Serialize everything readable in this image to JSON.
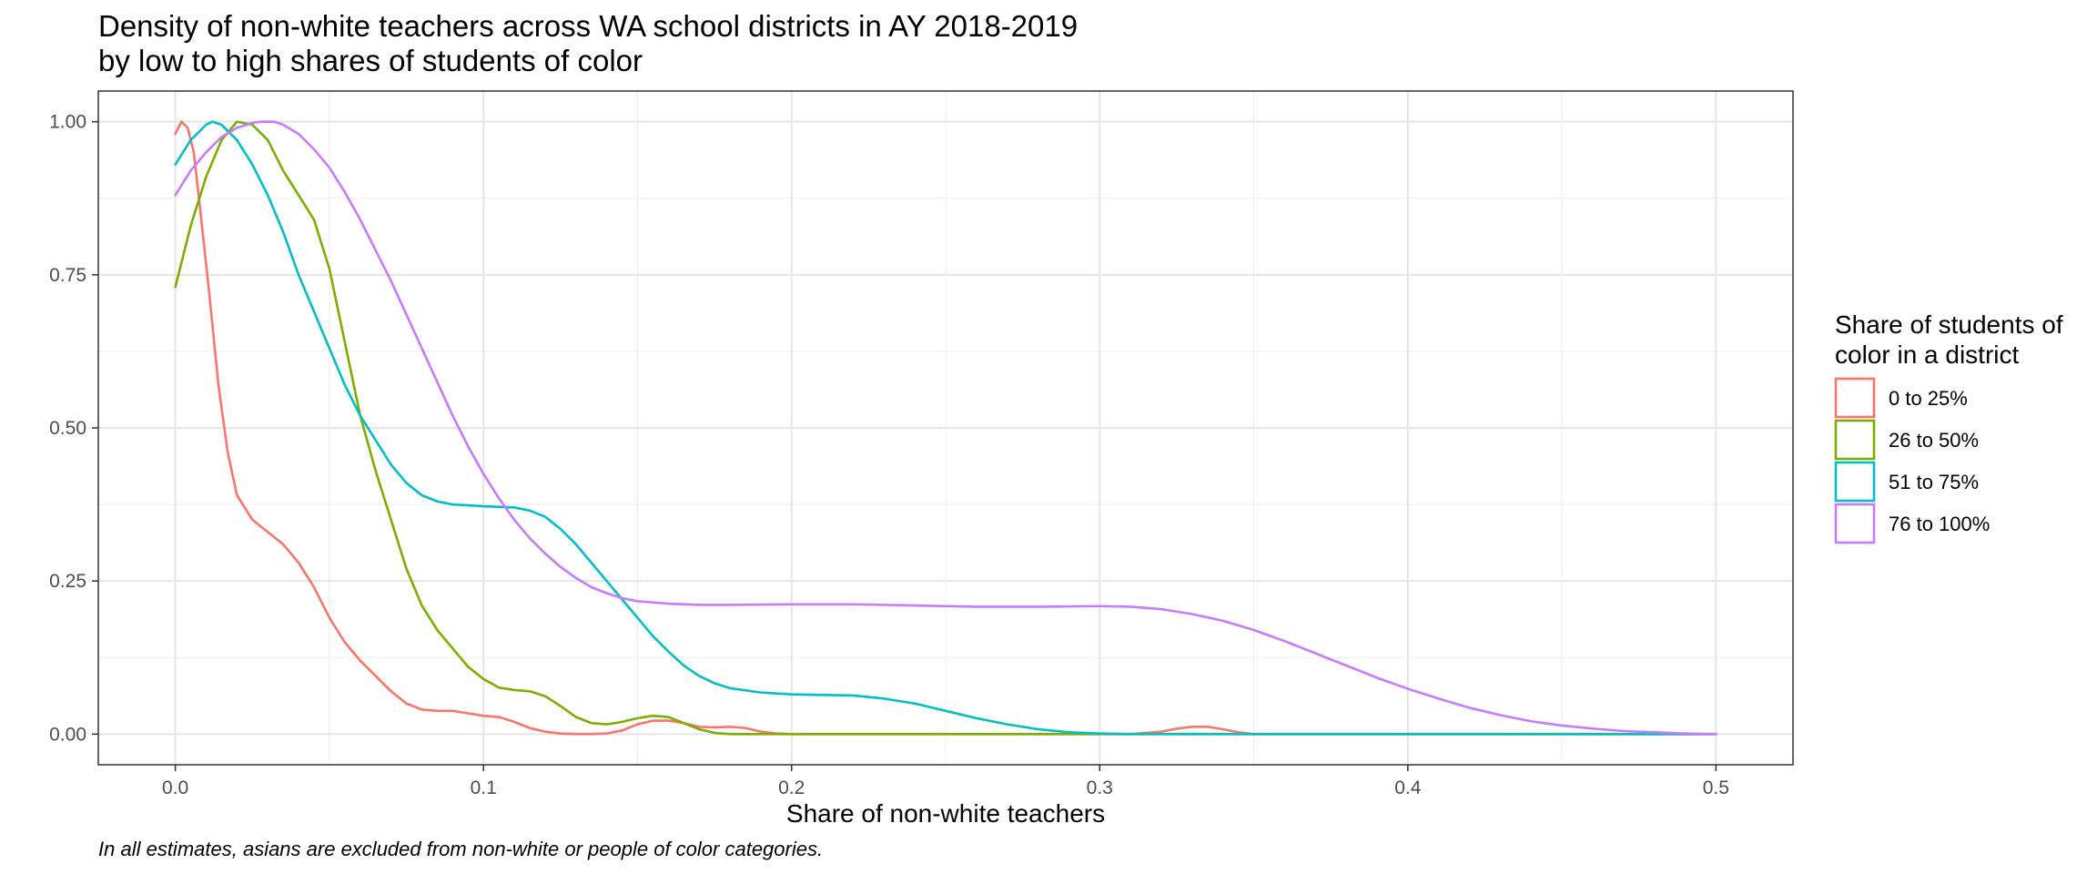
{
  "chart_data": {
    "type": "line",
    "title": "Density of non-white teachers across WA school districts in AY 2018-2019",
    "subtitle": "by low to high shares of students of color",
    "xlabel": "Share of non-white teachers",
    "ylabel": "",
    "caption": "In all estimates, asians are excluded from non-white or people of color categories.",
    "xlim": [
      -0.025,
      0.525
    ],
    "ylim": [
      -0.05,
      1.05
    ],
    "x_ticks": [
      0.0,
      0.1,
      0.2,
      0.3,
      0.4,
      0.5
    ],
    "x_tick_labels": [
      "0.0",
      "0.1",
      "0.2",
      "0.3",
      "0.4",
      "0.5"
    ],
    "y_ticks": [
      0.0,
      0.25,
      0.5,
      0.75,
      1.0
    ],
    "y_tick_labels": [
      "0.00",
      "0.25",
      "0.50",
      "0.75",
      "1.00"
    ],
    "grid": true,
    "legend": {
      "title": "Share of students of color in a district",
      "title_lines": [
        "Share of students of",
        "color in a district"
      ],
      "position": "right"
    },
    "series": [
      {
        "name": "0 to 25%",
        "color": "#F8766D",
        "points": [
          [
            0.0,
            0.98
          ],
          [
            0.002,
            1.0
          ],
          [
            0.004,
            0.99
          ],
          [
            0.006,
            0.95
          ],
          [
            0.008,
            0.86
          ],
          [
            0.011,
            0.72
          ],
          [
            0.014,
            0.57
          ],
          [
            0.017,
            0.46
          ],
          [
            0.02,
            0.39
          ],
          [
            0.025,
            0.35
          ],
          [
            0.03,
            0.33
          ],
          [
            0.035,
            0.31
          ],
          [
            0.04,
            0.28
          ],
          [
            0.045,
            0.24
          ],
          [
            0.05,
            0.19
          ],
          [
            0.055,
            0.15
          ],
          [
            0.06,
            0.12
          ],
          [
            0.065,
            0.095
          ],
          [
            0.07,
            0.07
          ],
          [
            0.075,
            0.05
          ],
          [
            0.08,
            0.04
          ],
          [
            0.085,
            0.038
          ],
          [
            0.09,
            0.038
          ],
          [
            0.095,
            0.034
          ],
          [
            0.1,
            0.03
          ],
          [
            0.105,
            0.028
          ],
          [
            0.11,
            0.02
          ],
          [
            0.115,
            0.01
          ],
          [
            0.12,
            0.004
          ],
          [
            0.125,
            0.001
          ],
          [
            0.13,
            0.0
          ],
          [
            0.135,
            0.0
          ],
          [
            0.14,
            0.001
          ],
          [
            0.145,
            0.006
          ],
          [
            0.15,
            0.016
          ],
          [
            0.155,
            0.022
          ],
          [
            0.16,
            0.022
          ],
          [
            0.165,
            0.018
          ],
          [
            0.17,
            0.012
          ],
          [
            0.175,
            0.011
          ],
          [
            0.18,
            0.012
          ],
          [
            0.185,
            0.01
          ],
          [
            0.19,
            0.004
          ],
          [
            0.195,
            0.001
          ],
          [
            0.2,
            0.0
          ],
          [
            0.25,
            0.0
          ],
          [
            0.31,
            0.0
          ],
          [
            0.32,
            0.004
          ],
          [
            0.325,
            0.009
          ],
          [
            0.33,
            0.012
          ],
          [
            0.335,
            0.012
          ],
          [
            0.34,
            0.008
          ],
          [
            0.345,
            0.003
          ],
          [
            0.35,
            0.0
          ],
          [
            0.4,
            0.0
          ],
          [
            0.5,
            0.0
          ]
        ]
      },
      {
        "name": "26 to 50%",
        "color": "#7CAE00",
        "points": [
          [
            0.0,
            0.73
          ],
          [
            0.005,
            0.83
          ],
          [
            0.01,
            0.91
          ],
          [
            0.015,
            0.97
          ],
          [
            0.02,
            1.0
          ],
          [
            0.025,
            0.995
          ],
          [
            0.03,
            0.97
          ],
          [
            0.035,
            0.92
          ],
          [
            0.04,
            0.88
          ],
          [
            0.045,
            0.84
          ],
          [
            0.05,
            0.76
          ],
          [
            0.055,
            0.64
          ],
          [
            0.06,
            0.52
          ],
          [
            0.065,
            0.43
          ],
          [
            0.07,
            0.35
          ],
          [
            0.075,
            0.27
          ],
          [
            0.08,
            0.21
          ],
          [
            0.085,
            0.17
          ],
          [
            0.09,
            0.14
          ],
          [
            0.095,
            0.11
          ],
          [
            0.1,
            0.09
          ],
          [
            0.105,
            0.076
          ],
          [
            0.11,
            0.072
          ],
          [
            0.115,
            0.07
          ],
          [
            0.12,
            0.062
          ],
          [
            0.125,
            0.046
          ],
          [
            0.13,
            0.028
          ],
          [
            0.135,
            0.018
          ],
          [
            0.14,
            0.016
          ],
          [
            0.145,
            0.02
          ],
          [
            0.15,
            0.026
          ],
          [
            0.155,
            0.03
          ],
          [
            0.16,
            0.028
          ],
          [
            0.165,
            0.018
          ],
          [
            0.17,
            0.008
          ],
          [
            0.175,
            0.002
          ],
          [
            0.18,
            0.0
          ],
          [
            0.2,
            0.0
          ],
          [
            0.3,
            0.0
          ],
          [
            0.4,
            0.0
          ],
          [
            0.5,
            0.0
          ]
        ]
      },
      {
        "name": "51 to 75%",
        "color": "#00BFC4",
        "points": [
          [
            0.0,
            0.93
          ],
          [
            0.005,
            0.97
          ],
          [
            0.01,
            0.995
          ],
          [
            0.012,
            1.0
          ],
          [
            0.015,
            0.995
          ],
          [
            0.02,
            0.97
          ],
          [
            0.025,
            0.93
          ],
          [
            0.03,
            0.88
          ],
          [
            0.035,
            0.82
          ],
          [
            0.04,
            0.75
          ],
          [
            0.045,
            0.69
          ],
          [
            0.05,
            0.63
          ],
          [
            0.055,
            0.57
          ],
          [
            0.06,
            0.52
          ],
          [
            0.065,
            0.48
          ],
          [
            0.07,
            0.44
          ],
          [
            0.075,
            0.41
          ],
          [
            0.08,
            0.39
          ],
          [
            0.085,
            0.38
          ],
          [
            0.09,
            0.375
          ],
          [
            0.1,
            0.372
          ],
          [
            0.11,
            0.37
          ],
          [
            0.115,
            0.365
          ],
          [
            0.12,
            0.355
          ],
          [
            0.125,
            0.335
          ],
          [
            0.13,
            0.31
          ],
          [
            0.135,
            0.28
          ],
          [
            0.14,
            0.25
          ],
          [
            0.145,
            0.22
          ],
          [
            0.15,
            0.19
          ],
          [
            0.155,
            0.16
          ],
          [
            0.16,
            0.135
          ],
          [
            0.165,
            0.112
          ],
          [
            0.17,
            0.095
          ],
          [
            0.175,
            0.083
          ],
          [
            0.18,
            0.075
          ],
          [
            0.19,
            0.068
          ],
          [
            0.2,
            0.065
          ],
          [
            0.21,
            0.064
          ],
          [
            0.22,
            0.063
          ],
          [
            0.23,
            0.058
          ],
          [
            0.24,
            0.05
          ],
          [
            0.25,
            0.038
          ],
          [
            0.26,
            0.026
          ],
          [
            0.27,
            0.016
          ],
          [
            0.28,
            0.008
          ],
          [
            0.29,
            0.003
          ],
          [
            0.3,
            0.001
          ],
          [
            0.31,
            0.0
          ],
          [
            0.35,
            0.0
          ],
          [
            0.4,
            0.0
          ],
          [
            0.5,
            0.0
          ]
        ]
      },
      {
        "name": "76 to 100%",
        "color": "#C77CFF",
        "points": [
          [
            0.0,
            0.88
          ],
          [
            0.005,
            0.92
          ],
          [
            0.01,
            0.95
          ],
          [
            0.015,
            0.975
          ],
          [
            0.02,
            0.99
          ],
          [
            0.025,
            0.998
          ],
          [
            0.028,
            1.0
          ],
          [
            0.032,
            1.0
          ],
          [
            0.035,
            0.995
          ],
          [
            0.04,
            0.98
          ],
          [
            0.045,
            0.955
          ],
          [
            0.05,
            0.925
          ],
          [
            0.055,
            0.885
          ],
          [
            0.06,
            0.84
          ],
          [
            0.065,
            0.79
          ],
          [
            0.07,
            0.74
          ],
          [
            0.075,
            0.685
          ],
          [
            0.08,
            0.63
          ],
          [
            0.085,
            0.575
          ],
          [
            0.09,
            0.52
          ],
          [
            0.095,
            0.47
          ],
          [
            0.1,
            0.425
          ],
          [
            0.105,
            0.385
          ],
          [
            0.11,
            0.35
          ],
          [
            0.115,
            0.32
          ],
          [
            0.12,
            0.295
          ],
          [
            0.125,
            0.273
          ],
          [
            0.13,
            0.255
          ],
          [
            0.135,
            0.24
          ],
          [
            0.14,
            0.23
          ],
          [
            0.145,
            0.222
          ],
          [
            0.15,
            0.217
          ],
          [
            0.16,
            0.213
          ],
          [
            0.17,
            0.211
          ],
          [
            0.18,
            0.211
          ],
          [
            0.2,
            0.212
          ],
          [
            0.22,
            0.212
          ],
          [
            0.24,
            0.21
          ],
          [
            0.26,
            0.208
          ],
          [
            0.28,
            0.208
          ],
          [
            0.3,
            0.209
          ],
          [
            0.31,
            0.208
          ],
          [
            0.32,
            0.204
          ],
          [
            0.33,
            0.196
          ],
          [
            0.34,
            0.185
          ],
          [
            0.35,
            0.17
          ],
          [
            0.36,
            0.152
          ],
          [
            0.37,
            0.132
          ],
          [
            0.38,
            0.112
          ],
          [
            0.39,
            0.092
          ],
          [
            0.4,
            0.074
          ],
          [
            0.41,
            0.058
          ],
          [
            0.42,
            0.043
          ],
          [
            0.43,
            0.031
          ],
          [
            0.44,
            0.021
          ],
          [
            0.45,
            0.014
          ],
          [
            0.46,
            0.009
          ],
          [
            0.47,
            0.005
          ],
          [
            0.48,
            0.003
          ],
          [
            0.49,
            0.001
          ],
          [
            0.5,
            0.0
          ]
        ]
      }
    ]
  }
}
